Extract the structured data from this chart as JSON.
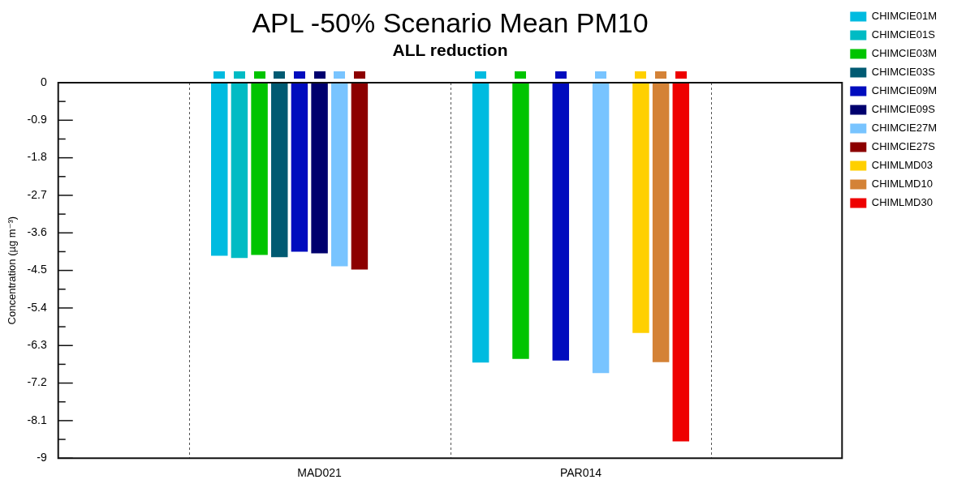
{
  "chart_data": {
    "type": "bar",
    "title": "APL -50% Scenario Mean PM10",
    "subtitle": "ALL reduction",
    "ylabel": "Concentration (µg m⁻³)",
    "categories": [
      "MAD021",
      "PAR014"
    ],
    "series": [
      {
        "name": "CHIMCIE01M",
        "color": "#00bbe0",
        "values": [
          -4.15,
          -6.71
        ]
      },
      {
        "name": "CHIMCIE01S",
        "color": "#00bbc4",
        "values": [
          -4.2,
          null
        ]
      },
      {
        "name": "CHIMCIE03M",
        "color": "#00c400",
        "values": [
          -4.13,
          -6.62
        ]
      },
      {
        "name": "CHIMCIE03S",
        "color": "#005a72",
        "values": [
          -4.18,
          null
        ]
      },
      {
        "name": "CHIMCIE09M",
        "color": "#000cbe",
        "values": [
          -4.05,
          -6.66
        ]
      },
      {
        "name": "CHIMCIE09S",
        "color": "#00006e",
        "values": [
          -4.09,
          null
        ]
      },
      {
        "name": "CHIMCIE27M",
        "color": "#78c4ff",
        "values": [
          -4.4,
          -6.96
        ]
      },
      {
        "name": "CHIMCIE27S",
        "color": "#8c0000",
        "values": [
          -4.48,
          null
        ]
      },
      {
        "name": "CHIMLMD03",
        "color": "#ffd000",
        "values": [
          null,
          -6.0
        ]
      },
      {
        "name": "CHIMLMD10",
        "color": "#d48236",
        "values": [
          null,
          -6.7
        ]
      },
      {
        "name": "CHIMLMD30",
        "color": "#ee0000",
        "values": [
          null,
          -8.6
        ]
      }
    ],
    "ylim": [
      -9,
      0
    ],
    "yticks": [
      -9,
      {
        "value": -8.55,
        "label": null
      },
      -8.1,
      {
        "value": -7.65,
        "label": null
      },
      -7.2,
      {
        "value": -6.75,
        "label": null
      },
      -6.3,
      {
        "value": -5.85,
        "label": null
      },
      -5.4,
      {
        "value": -4.95,
        "label": null
      },
      -4.5,
      {
        "value": -4.05,
        "label": null
      },
      -3.6,
      {
        "value": -3.15,
        "label": null
      },
      -2.7,
      {
        "value": -2.25,
        "label": null
      },
      -1.8,
      {
        "value": -1.35,
        "label": null
      },
      -0.9,
      {
        "value": -0.45,
        "label": null
      },
      0
    ],
    "legend": "top right"
  }
}
